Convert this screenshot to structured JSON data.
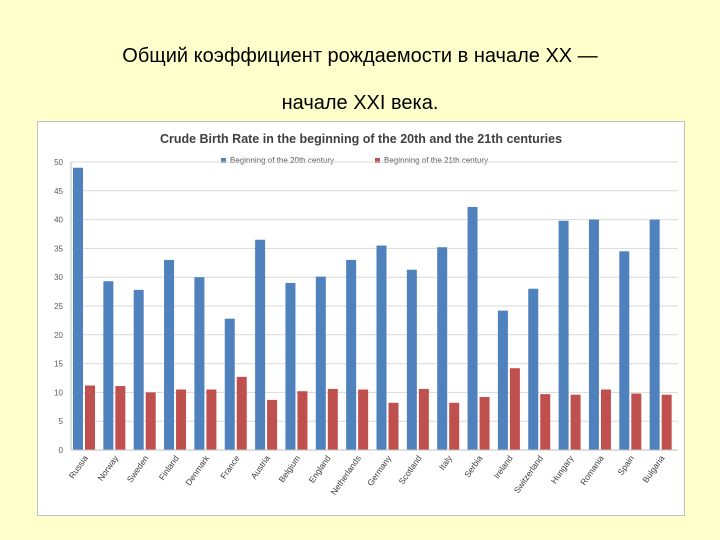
{
  "slide": {
    "title_line1": "Общий коэффициент рождаемости в начале XX —",
    "title_line2": "начале XXI века."
  },
  "chart_data": {
    "type": "bar",
    "title": "Crude Birth Rate in the beginning of the 20th and the 21th centuries",
    "xlabel": "",
    "ylabel": "",
    "ylim": [
      0,
      50
    ],
    "yticks": [
      0,
      5,
      10,
      15,
      20,
      25,
      30,
      35,
      40,
      45,
      50
    ],
    "grid": true,
    "legend_position": "top",
    "categories": [
      "Russia",
      "Norway",
      "Sweden",
      "Finland",
      "Denmark",
      "France",
      "Austria",
      "Belgium",
      "England",
      "Netherlands",
      "Germany",
      "Scotland",
      "Italy",
      "Serbia",
      "Ireland",
      "Switzerland",
      "Hungary",
      "Romania",
      "Spain",
      "Bulgaria"
    ],
    "series": [
      {
        "name": "Beginning of the 20th century",
        "color": "#4f81bd",
        "values": [
          49,
          29.3,
          27.8,
          33,
          30,
          22.8,
          36.5,
          29,
          30.1,
          33,
          35.5,
          31.3,
          35.2,
          42.2,
          24.2,
          28,
          39.8,
          40,
          34.5,
          40
        ]
      },
      {
        "name": "Beginning of the 21th century",
        "color": "#c0504d",
        "values": [
          11.2,
          11.1,
          10,
          10.5,
          10.5,
          12.7,
          8.7,
          10.2,
          10.6,
          10.5,
          8.2,
          10.6,
          8.2,
          9.2,
          14.2,
          9.7,
          9.6,
          10.5,
          9.8,
          9.6
        ]
      }
    ]
  }
}
